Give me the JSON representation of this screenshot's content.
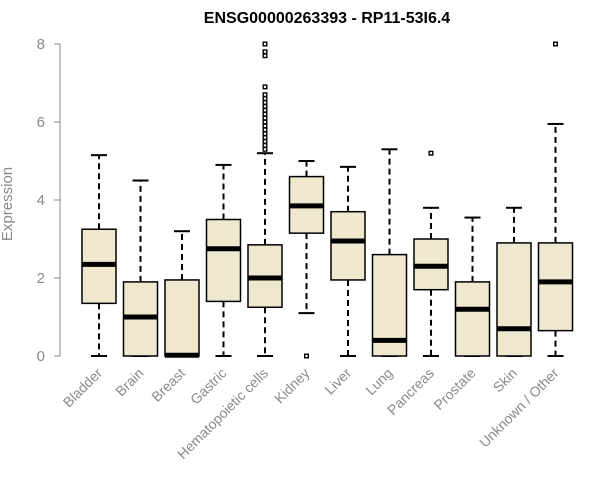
{
  "chart_data": {
    "type": "box",
    "title": "ENSG00000263393 - RP11-53I6.4",
    "ylabel": "Expression",
    "xlabel": "",
    "ylim": [
      0,
      8
    ],
    "yticks": [
      0,
      2,
      4,
      6,
      8
    ],
    "grid": false,
    "categories": [
      "Bladder",
      "Brain",
      "Breast",
      "Gastric",
      "Hematopoietic cells",
      "Kidney",
      "Liver",
      "Lung",
      "Pancreas",
      "Prostate",
      "Skin",
      "Unknown / Other"
    ],
    "boxes": [
      {
        "min": 0,
        "q1": 1.35,
        "median": 2.35,
        "q3": 3.25,
        "max": 5.15,
        "outliers": []
      },
      {
        "min": 0,
        "q1": 0.0,
        "median": 1.0,
        "q3": 1.9,
        "max": 4.5,
        "outliers": []
      },
      {
        "min": 0,
        "q1": 0.0,
        "median": 0.02,
        "q3": 1.95,
        "max": 3.2,
        "outliers": []
      },
      {
        "min": 0,
        "q1": 1.4,
        "median": 2.75,
        "q3": 3.5,
        "max": 4.9,
        "outliers": []
      },
      {
        "min": 0,
        "q1": 1.25,
        "median": 2.0,
        "q3": 2.85,
        "max": 5.2,
        "outliers": [
          5.3,
          5.4,
          5.5,
          5.6,
          5.7,
          5.8,
          5.9,
          6.0,
          6.1,
          6.2,
          6.3,
          6.4,
          6.5,
          6.6,
          6.7,
          6.9,
          7.7,
          7.8,
          8.0
        ]
      },
      {
        "min": 1.1,
        "q1": 3.15,
        "median": 3.85,
        "q3": 4.6,
        "max": 5.0,
        "outliers": [
          0.0
        ]
      },
      {
        "min": 0,
        "q1": 1.95,
        "median": 2.95,
        "q3": 3.7,
        "max": 4.85,
        "outliers": []
      },
      {
        "min": 0,
        "q1": 0.0,
        "median": 0.4,
        "q3": 2.6,
        "max": 5.3,
        "outliers": []
      },
      {
        "min": 0,
        "q1": 1.7,
        "median": 2.3,
        "q3": 3.0,
        "max": 3.8,
        "outliers": [
          5.2
        ]
      },
      {
        "min": 0,
        "q1": 0.0,
        "median": 1.2,
        "q3": 1.9,
        "max": 3.55,
        "outliers": []
      },
      {
        "min": 0,
        "q1": 0.0,
        "median": 0.7,
        "q3": 2.9,
        "max": 3.8,
        "outliers": []
      },
      {
        "min": 0,
        "q1": 0.65,
        "median": 1.9,
        "q3": 2.9,
        "max": 5.95,
        "outliers": [
          8.0
        ]
      }
    ],
    "box_color": "#efe8cf"
  }
}
